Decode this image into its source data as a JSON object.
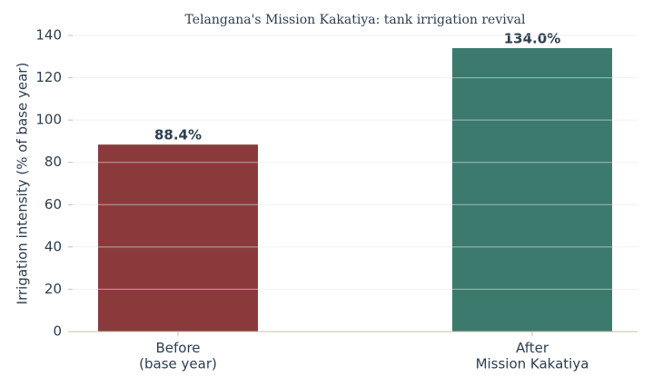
{
  "chart_data": {
    "type": "bar",
    "title": "Telangana's Mission Kakatiya: tank irrigation revival",
    "y_label": "Irrigation intensity (% of base year)",
    "categories": [
      "Before\n(base year)",
      "After\nMission Kakatiya"
    ],
    "values": [
      88.4,
      134.0
    ],
    "value_labels": [
      "88.4%",
      "134.0%"
    ],
    "colors": [
      "#8b3a3c",
      "#3d7a6e"
    ],
    "ylim": [
      0,
      140
    ],
    "yticks": [
      0,
      20,
      40,
      60,
      80,
      100,
      120,
      140
    ],
    "grid": true
  }
}
